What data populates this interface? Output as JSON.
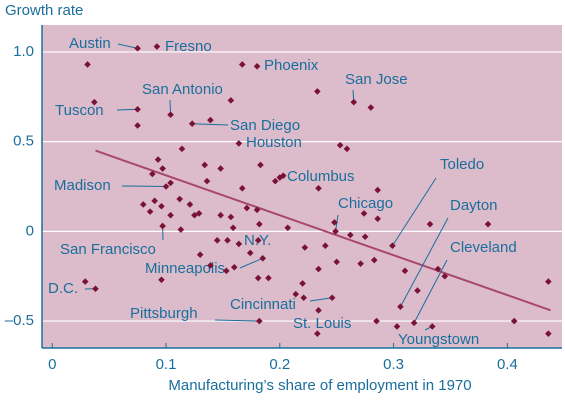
{
  "chart_data": {
    "type": "scatter",
    "title": "Growth rate",
    "x_label": "Manufacturing’s share of employment in 1970",
    "x": [
      0.075,
      0.092,
      0.031,
      0.167,
      0.18,
      0.233,
      0.265,
      0.28,
      0.037,
      0.157,
      0.075,
      0.104,
      0.075,
      0.123,
      0.139,
      0.164,
      0.114,
      0.253,
      0.259,
      0.093,
      0.097,
      0.183,
      0.134,
      0.148,
      0.136,
      0.088,
      0.104,
      0.1,
      0.167,
      0.196,
      0.2,
      0.203,
      0.234,
      0.286,
      0.08,
      0.09,
      0.096,
      0.112,
      0.121,
      0.129,
      0.157,
      0.171,
      0.125,
      0.104,
      0.086,
      0.097,
      0.113,
      0.148,
      0.18,
      0.182,
      0.145,
      0.154,
      0.159,
      0.181,
      0.207,
      0.174,
      0.185,
      0.222,
      0.24,
      0.249,
      0.262,
      0.275,
      0.248,
      0.274,
      0.286,
      0.25,
      0.271,
      0.283,
      0.13,
      0.139,
      0.153,
      0.16,
      0.181,
      0.19,
      0.164,
      0.22,
      0.234,
      0.214,
      0.221,
      0.246,
      0.234,
      0.233,
      0.182,
      0.038,
      0.029,
      0.096,
      0.299,
      0.31,
      0.306,
      0.321,
      0.318,
      0.285,
      0.303,
      0.334,
      0.339,
      0.345,
      0.332,
      0.383,
      0.406,
      0.436,
      0.436
    ],
    "y": [
      1.02,
      1.03,
      0.93,
      0.93,
      0.92,
      0.78,
      0.72,
      0.69,
      0.72,
      0.73,
      0.68,
      0.65,
      0.59,
      0.6,
      0.62,
      0.49,
      0.46,
      0.48,
      0.46,
      0.4,
      0.35,
      0.37,
      0.37,
      0.35,
      0.28,
      0.32,
      0.27,
      0.25,
      0.24,
      0.28,
      0.3,
      0.31,
      0.24,
      0.23,
      0.15,
      0.17,
      0.14,
      0.18,
      0.15,
      0.1,
      0.08,
      0.13,
      0.09,
      0.09,
      0.11,
      0.03,
      0.01,
      0.09,
      0.12,
      0.04,
      -0.05,
      -0.05,
      0.02,
      -0.05,
      0.02,
      -0.12,
      -0.15,
      -0.09,
      -0.08,
      0.0,
      -0.02,
      -0.03,
      0.05,
      0.1,
      0.07,
      -0.17,
      -0.18,
      -0.16,
      -0.13,
      -0.19,
      -0.22,
      -0.2,
      -0.26,
      -0.26,
      -0.07,
      -0.29,
      -0.21,
      -0.35,
      -0.37,
      -0.37,
      -0.44,
      -0.57,
      -0.5,
      -0.32,
      -0.28,
      -0.27,
      -0.08,
      -0.22,
      -0.42,
      -0.33,
      -0.51,
      -0.5,
      -0.53,
      -0.53,
      -0.21,
      -0.25,
      0.04,
      0.04,
      -0.5,
      -0.28,
      -0.57
    ],
    "labels": [
      "Austin",
      "Fresno",
      null,
      null,
      "Phoenix",
      null,
      "San Jose",
      null,
      null,
      null,
      "Tuscon",
      "San Antonio",
      null,
      "San Diego",
      null,
      "Houston",
      null,
      null,
      null,
      null,
      null,
      null,
      null,
      null,
      null,
      null,
      null,
      "Madison",
      null,
      null,
      null,
      "Columbus",
      null,
      null,
      null,
      null,
      null,
      null,
      null,
      null,
      null,
      null,
      null,
      null,
      null,
      "San Francisco",
      null,
      null,
      null,
      null,
      null,
      null,
      null,
      null,
      null,
      "N.Y.",
      "Minneapolis",
      null,
      null,
      "Chicago",
      null,
      null,
      null,
      null,
      null,
      null,
      null,
      null,
      null,
      null,
      null,
      null,
      null,
      null,
      null,
      null,
      null,
      null,
      null,
      "Cincinnati",
      null,
      "St. Louis",
      "Pittsburgh",
      "D.C.",
      null,
      null,
      "Toledo",
      null,
      "Dayton",
      null,
      "Cleveland",
      null,
      null,
      "Youngstown",
      null,
      null,
      null,
      null,
      null,
      null,
      null
    ],
    "color": "#7a1236",
    "trend": {
      "x": [
        0.038,
        0.438
      ],
      "y": [
        0.45,
        -0.44
      ],
      "color": "#a8476e"
    },
    "xlim": [
      -0.009,
      0.448
    ],
    "ylim": [
      -0.65,
      1.15
    ],
    "xticks": [
      0,
      0.1,
      0.2,
      0.3,
      0.4
    ],
    "yticks": [
      {
        "value": 1,
        "label": "1.0"
      },
      0.5,
      0,
      {
        "value": -0.5,
        "label": "–0.5"
      }
    ],
    "grid": true
  }
}
